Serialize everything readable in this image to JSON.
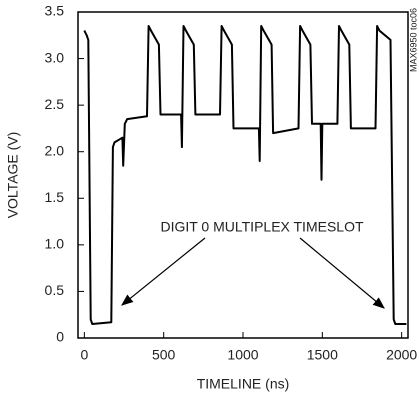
{
  "chart_data": {
    "type": "line",
    "xlabel": "TIMELINE (ns)",
    "ylabel": "VOLTAGE (V)",
    "annotation": "DIGIT 0 MULTIPLEX TIMESLOT",
    "side_note": "MAX6950 toc06",
    "xlim": [
      -40,
      2040
    ],
    "ylim": [
      0,
      3.5
    ],
    "xticks": [
      0,
      500,
      1000,
      1500,
      2000
    ],
    "yticks": [
      0,
      0.5,
      {
        "value": 1,
        "label": "1.0"
      },
      1.5,
      {
        "value": 2,
        "label": "2.0"
      },
      2.5,
      {
        "value": 3,
        "label": "3.0"
      },
      3.5
    ],
    "grid": false,
    "series": [
      {
        "color": "#000000",
        "x": [
          0,
          15,
          25,
          40,
          50,
          170,
          180,
          190,
          240,
          245,
          255,
          270,
          395,
          405,
          420,
          470,
          480,
          610,
          615,
          625,
          640,
          690,
          700,
          855,
          865,
          880,
          930,
          940,
          1100,
          1105,
          1115,
          1130,
          1180,
          1190,
          1350,
          1360,
          1375,
          1425,
          1435,
          1490,
          1495,
          1500,
          1595,
          1605,
          1620,
          1670,
          1680,
          1835,
          1845,
          1860,
          1930,
          1950,
          1960,
          2030
        ],
        "values": [
          3.3,
          3.25,
          3.2,
          0.2,
          0.15,
          0.17,
          2.05,
          2.1,
          2.15,
          1.85,
          2.3,
          2.35,
          2.38,
          3.35,
          3.3,
          3.15,
          2.4,
          2.4,
          2.05,
          3.35,
          3.3,
          3.15,
          2.4,
          2.4,
          3.35,
          3.3,
          3.15,
          2.25,
          2.25,
          1.9,
          3.35,
          3.3,
          3.15,
          2.2,
          2.25,
          3.35,
          3.3,
          3.15,
          2.3,
          2.3,
          1.7,
          2.3,
          2.3,
          3.35,
          3.3,
          3.15,
          2.25,
          2.25,
          3.35,
          3.3,
          3.2,
          0.2,
          0.15,
          0.15
        ]
      }
    ]
  }
}
